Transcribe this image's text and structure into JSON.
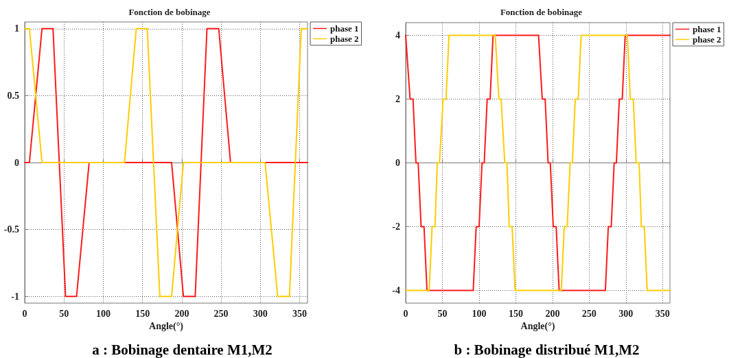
{
  "chart_data": [
    {
      "type": "line",
      "title": "Fonction de bobinage",
      "xlabel": "Angle(°)",
      "annotations": [
        "a : Bobinage dentaire M1,M2"
      ],
      "xlim": [
        0,
        360
      ],
      "xticks": [
        0,
        50,
        100,
        150,
        200,
        250,
        300,
        350
      ],
      "ylim": [
        -1.05,
        1.05
      ],
      "yticks": [
        -1,
        -0.5,
        0,
        0.5,
        1
      ],
      "grid": true,
      "legend": "top right",
      "marker": "none",
      "line_style": "solid",
      "series": [
        {
          "name": "phase 1",
          "color": "#ff1a1a",
          "x": [
            0,
            6,
            22,
            36,
            52,
            66,
            82,
            187,
            202,
            217,
            232,
            247,
            262,
            360
          ],
          "values": [
            0,
            0,
            1,
            1,
            -1,
            -1,
            0,
            0,
            -1,
            -1,
            1,
            1,
            0,
            0
          ]
        },
        {
          "name": "phase 2",
          "color": "#ffcc00",
          "x": [
            0,
            6,
            22,
            127,
            142,
            156,
            172,
            187,
            202,
            306,
            322,
            337,
            352,
            360
          ],
          "values": [
            1,
            1,
            0,
            0,
            1,
            1,
            -1,
            -1,
            0,
            0,
            -1,
            -1,
            1,
            1
          ]
        }
      ]
    },
    {
      "type": "line",
      "title": "Fonction de bobinage",
      "xlabel": "Angle(°)",
      "annotations": [
        "b : Bobinage distribué M1,M2"
      ],
      "xlim": [
        0,
        360
      ],
      "xticks": [
        0,
        50,
        100,
        150,
        200,
        250,
        300,
        350
      ],
      "ylim": [
        -4.4,
        4.4
      ],
      "yticks": [
        -4,
        -2,
        0,
        2,
        4
      ],
      "grid": true,
      "legend": "top right",
      "marker": "none",
      "line_style": "solid",
      "series": [
        {
          "name": "phase 1",
          "color": "#ff1a1a",
          "x": [
            0,
            6,
            10,
            14,
            17,
            21,
            25,
            29,
            92,
            96,
            100,
            104,
            107,
            111,
            115,
            119,
            181,
            186,
            190,
            194,
            197,
            201,
            205,
            209,
            272,
            276,
            280,
            284,
            287,
            291,
            295,
            299,
            360
          ],
          "values": [
            4,
            2,
            2,
            0,
            0,
            -2,
            -2,
            -4,
            -4,
            -2,
            -2,
            0,
            0,
            2,
            2,
            4,
            4,
            2,
            2,
            0,
            0,
            -2,
            -2,
            -4,
            -4,
            -2,
            -2,
            0,
            0,
            2,
            2,
            4,
            4
          ]
        },
        {
          "name": "phase 2",
          "color": "#ffcc00",
          "x": [
            0,
            32,
            36,
            40,
            43,
            46,
            51,
            55,
            59,
            122,
            127,
            130,
            135,
            138,
            141,
            145,
            149,
            212,
            216,
            220,
            224,
            227,
            231,
            235,
            239,
            302,
            306,
            310,
            314,
            318,
            321,
            325,
            329,
            360
          ],
          "values": [
            -4,
            -4,
            -2,
            -2,
            0,
            0,
            2,
            2,
            4,
            4,
            2,
            2,
            0,
            0,
            -2,
            -2,
            -4,
            -4,
            -2,
            -2,
            0,
            0,
            2,
            2,
            4,
            4,
            2,
            2,
            0,
            0,
            -2,
            -2,
            -4,
            -4
          ]
        }
      ]
    }
  ]
}
